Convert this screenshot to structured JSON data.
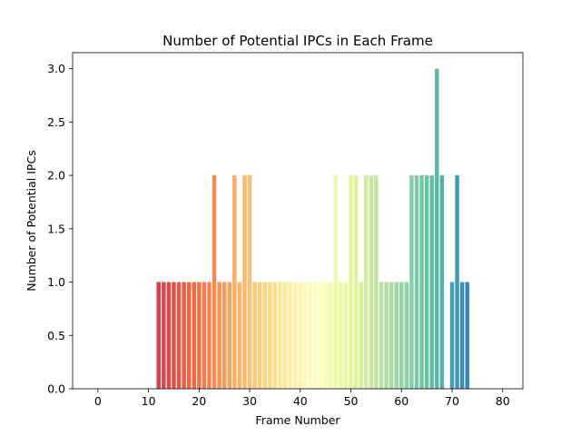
{
  "chart_data": {
    "type": "bar",
    "title": "Number of Potential IPCs in Each Frame",
    "xlabel": "Frame Number",
    "ylabel": "Number of Potential IPCs",
    "xlim": [
      -5,
      84
    ],
    "ylim": [
      0,
      3.15
    ],
    "xticks": [
      0,
      10,
      20,
      30,
      40,
      50,
      60,
      70,
      80
    ],
    "yticks": [
      0.0,
      0.5,
      1.0,
      1.5,
      2.0,
      2.5,
      3.0
    ],
    "xtick_labels": [
      "0",
      "10",
      "20",
      "30",
      "40",
      "50",
      "60",
      "70",
      "80"
    ],
    "ytick_labels": [
      "0.0",
      "0.5",
      "1.0",
      "1.5",
      "2.0",
      "2.5",
      "3.0"
    ],
    "colormap": "Spectral",
    "grid": false,
    "x": [
      12,
      13,
      14,
      15,
      16,
      17,
      18,
      19,
      20,
      21,
      22,
      23,
      24,
      25,
      26,
      27,
      28,
      29,
      30,
      31,
      32,
      33,
      34,
      35,
      36,
      37,
      38,
      39,
      40,
      41,
      42,
      43,
      44,
      45,
      46,
      47,
      48,
      49,
      50,
      51,
      52,
      53,
      54,
      55,
      56,
      57,
      58,
      59,
      60,
      61,
      62,
      63,
      64,
      65,
      66,
      67,
      68,
      70,
      71,
      72,
      73
    ],
    "values": [
      1,
      1,
      1,
      1,
      1,
      1,
      1,
      1,
      1,
      1,
      1,
      2,
      1,
      1,
      1,
      2,
      1,
      2,
      2,
      1,
      1,
      1,
      1,
      1,
      1,
      1,
      1,
      1,
      1,
      1,
      1,
      1,
      1,
      1,
      1,
      2,
      1,
      1,
      2,
      2,
      1,
      2,
      2,
      2,
      1,
      1,
      1,
      1,
      1,
      1,
      2,
      2,
      2,
      2,
      2,
      3,
      2,
      1,
      2,
      1,
      1
    ]
  }
}
